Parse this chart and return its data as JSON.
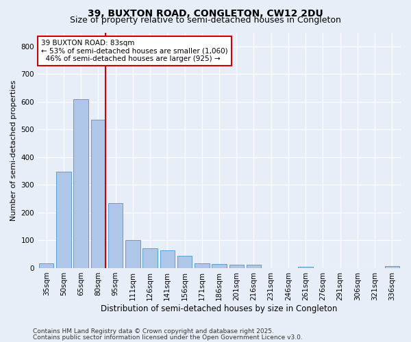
{
  "title1": "39, BUXTON ROAD, CONGLETON, CW12 2DU",
  "title2": "Size of property relative to semi-detached houses in Congleton",
  "xlabel": "Distribution of semi-detached houses by size in Congleton",
  "ylabel": "Number of semi-detached properties",
  "categories": [
    "35sqm",
    "50sqm",
    "65sqm",
    "80sqm",
    "95sqm",
    "111sqm",
    "126sqm",
    "141sqm",
    "156sqm",
    "171sqm",
    "186sqm",
    "201sqm",
    "216sqm",
    "231sqm",
    "246sqm",
    "261sqm",
    "276sqm",
    "291sqm",
    "306sqm",
    "321sqm",
    "336sqm"
  ],
  "values": [
    18,
    348,
    610,
    535,
    235,
    100,
    72,
    65,
    45,
    18,
    15,
    13,
    12,
    0,
    0,
    5,
    0,
    0,
    0,
    0,
    8
  ],
  "bar_color": "#aec6e8",
  "bar_edge_color": "#5a9fd4",
  "annotation_text": "39 BUXTON ROAD: 83sqm\n← 53% of semi-detached houses are smaller (1,060)\n  46% of semi-detached houses are larger (925) →",
  "annotation_box_color": "#ffffff",
  "annotation_box_edge": "#cc0000",
  "red_line_color": "#cc0000",
  "ylim": [
    0,
    850
  ],
  "yticks": [
    0,
    100,
    200,
    300,
    400,
    500,
    600,
    700,
    800
  ],
  "background_color": "#e8eef7",
  "footer1": "Contains HM Land Registry data © Crown copyright and database right 2025.",
  "footer2": "Contains public sector information licensed under the Open Government Licence v3.0.",
  "title1_fontsize": 10,
  "title2_fontsize": 9,
  "xlabel_fontsize": 8.5,
  "ylabel_fontsize": 8,
  "tick_fontsize": 7.5,
  "annotation_fontsize": 7.5,
  "footer_fontsize": 6.5
}
